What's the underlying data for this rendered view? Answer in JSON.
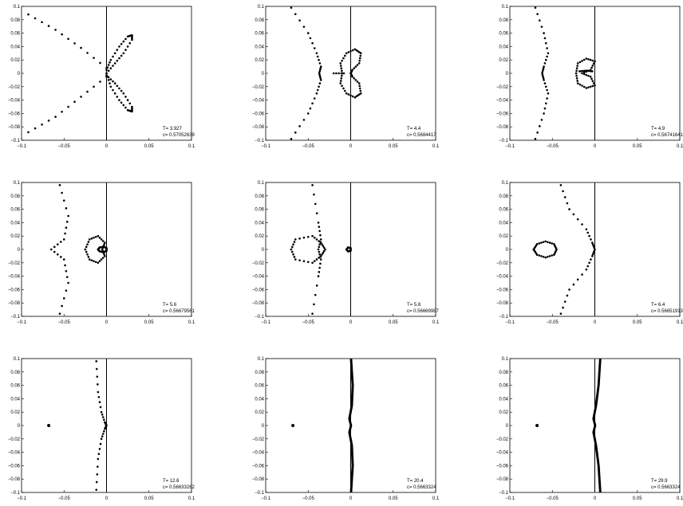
{
  "chart_data": [
    {
      "type": "scatter",
      "annotation": {
        "t": "T= 3.927",
        "c": "c= 0.57052639"
      },
      "xlim": [
        -0.1,
        0.1
      ],
      "ylim": [
        -0.1,
        0.1
      ],
      "xticks": [
        "−0.1",
        "−0.05",
        "0",
        "0.05",
        "0.1"
      ],
      "yticks": [
        "0.1",
        "0.08",
        "0.06",
        "0.04",
        "0.02",
        "0",
        "−0.02",
        "−0.04",
        "−0.06",
        "−0.08",
        "−0.1"
      ],
      "series": [
        {
          "kind": "line",
          "points": [
            [
              -0.092,
              0.088
            ],
            [
              -0.06,
              0.065
            ],
            [
              -0.03,
              0.038
            ],
            [
              0,
              0.008
            ]
          ]
        },
        {
          "kind": "line",
          "points": [
            [
              -0.092,
              -0.088
            ],
            [
              -0.06,
              -0.065
            ],
            [
              -0.03,
              -0.035
            ],
            [
              0,
              -0.005
            ]
          ]
        },
        {
          "kind": "line",
          "points": [
            [
              0,
              0.005
            ],
            [
              0.005,
              0.02
            ],
            [
              0.015,
              0.04
            ],
            [
              0.025,
              0.055
            ],
            [
              0.03,
              0.057
            ],
            [
              0.03,
              0.05
            ],
            [
              0.02,
              0.03
            ],
            [
              0.01,
              0.015
            ],
            [
              0,
              0
            ]
          ]
        },
        {
          "kind": "line",
          "points": [
            [
              0,
              0
            ],
            [
              0.005,
              -0.02
            ],
            [
              0.015,
              -0.04
            ],
            [
              0.025,
              -0.055
            ],
            [
              0.03,
              -0.057
            ],
            [
              0.03,
              -0.05
            ],
            [
              0.02,
              -0.03
            ],
            [
              0.01,
              -0.015
            ],
            [
              0,
              -0.003
            ]
          ]
        }
      ]
    },
    {
      "type": "scatter",
      "annotation": {
        "t": "T= 4.4",
        "c": "c= 0.5684417"
      },
      "xlim": [
        -0.1,
        0.1
      ],
      "ylim": [
        -0.1,
        0.1
      ],
      "xticks": [
        "−0.1",
        "−0.05",
        "0",
        "0.05",
        "0.1"
      ],
      "yticks": [
        "0.1",
        "0.08",
        "0.06",
        "0.04",
        "0.02",
        "0",
        "−0.02",
        "−0.04",
        "−0.06",
        "−0.08",
        "−0.1"
      ],
      "series": [
        {
          "kind": "line",
          "points": [
            [
              -0.07,
              0.098
            ],
            [
              -0.05,
              0.06
            ],
            [
              -0.04,
              0.03
            ],
            [
              -0.035,
              0.01
            ],
            [
              -0.037,
              0
            ],
            [
              -0.035,
              -0.01
            ],
            [
              -0.04,
              -0.03
            ],
            [
              -0.05,
              -0.06
            ],
            [
              -0.07,
              -0.098
            ]
          ]
        },
        {
          "kind": "line",
          "points": [
            [
              -0.01,
              0
            ],
            [
              -0.012,
              0.015
            ],
            [
              -0.005,
              0.03
            ],
            [
              0.005,
              0.036
            ],
            [
              0.012,
              0.03
            ],
            [
              0.01,
              0.015
            ],
            [
              0.002,
              0.005
            ],
            [
              0,
              0
            ],
            [
              0.002,
              -0.005
            ],
            [
              0.01,
              -0.015
            ],
            [
              0.012,
              -0.03
            ],
            [
              0.005,
              -0.036
            ],
            [
              -0.005,
              -0.03
            ],
            [
              -0.012,
              -0.015
            ],
            [
              -0.01,
              0
            ]
          ]
        },
        {
          "kind": "line",
          "points": [
            [
              -0.02,
              0
            ],
            [
              -0.008,
              0
            ]
          ]
        }
      ]
    },
    {
      "type": "scatter",
      "annotation": {
        "t": "T= 4.9",
        "c": "c= 0.56741641"
      },
      "xlim": [
        -0.1,
        0.1
      ],
      "ylim": [
        -0.1,
        0.1
      ],
      "xticks": [
        "−0.1",
        "−0.05",
        "0",
        "0.05",
        "0.1"
      ],
      "yticks": [
        "0.1",
        "0.08",
        "0.06",
        "0.04",
        "0.02",
        "0",
        "−0.02",
        "−0.04",
        "−0.06",
        "−0.08",
        "−0.1"
      ],
      "series": [
        {
          "kind": "line",
          "points": [
            [
              -0.07,
              0.098
            ],
            [
              -0.06,
              0.06
            ],
            [
              -0.055,
              0.03
            ],
            [
              -0.06,
              0.01
            ],
            [
              -0.062,
              0
            ],
            [
              -0.06,
              -0.01
            ],
            [
              -0.055,
              -0.03
            ],
            [
              -0.06,
              -0.06
            ],
            [
              -0.07,
              -0.098
            ]
          ]
        },
        {
          "kind": "line",
          "points": [
            [
              -0.022,
              0
            ],
            [
              -0.02,
              0.015
            ],
            [
              -0.01,
              0.022
            ],
            [
              0,
              0.018
            ],
            [
              -0.005,
              0.005
            ],
            [
              -0.015,
              0
            ],
            [
              -0.005,
              -0.005
            ],
            [
              0,
              -0.018
            ],
            [
              -0.01,
              -0.022
            ],
            [
              -0.02,
              -0.015
            ],
            [
              -0.022,
              0
            ]
          ]
        },
        {
          "kind": "line",
          "points": [
            [
              -0.018,
              0.003
            ],
            [
              -0.01,
              0.004
            ],
            [
              -0.003,
              0.003
            ]
          ]
        }
      ]
    },
    {
      "type": "scatter",
      "annotation": {
        "t": "T= 5.6",
        "c": "c= 0.56679561"
      },
      "xlim": [
        -0.1,
        0.1
      ],
      "ylim": [
        -0.1,
        0.1
      ],
      "xticks": [
        "−0.1",
        "−0.05",
        "0",
        "0.05",
        "0.1"
      ],
      "yticks": [
        "0.1",
        "0.08",
        "0.06",
        "0.04",
        "0.02",
        "0",
        "−0.02",
        "−0.04",
        "−0.06",
        "−0.08",
        "−0.1"
      ],
      "series": [
        {
          "kind": "line",
          "points": [
            [
              -0.055,
              0.096
            ],
            [
              -0.045,
              0.05
            ],
            [
              -0.05,
              0.015
            ],
            [
              -0.065,
              0
            ],
            [
              -0.05,
              -0.015
            ],
            [
              -0.045,
              -0.05
            ],
            [
              -0.055,
              -0.096
            ]
          ]
        },
        {
          "kind": "line",
          "points": [
            [
              -0.025,
              0
            ],
            [
              -0.02,
              0.015
            ],
            [
              -0.01,
              0.02
            ],
            [
              -0.002,
              0.01
            ],
            [
              -0.005,
              0
            ],
            [
              -0.002,
              -0.01
            ],
            [
              -0.01,
              -0.02
            ],
            [
              -0.02,
              -0.015
            ],
            [
              -0.025,
              0
            ]
          ]
        },
        {
          "kind": "line",
          "points": [
            [
              -0.01,
              0
            ],
            [
              -0.008,
              0.003
            ],
            [
              -0.003,
              0.004
            ],
            [
              0,
              0.002
            ],
            [
              0,
              -0.002
            ],
            [
              -0.003,
              -0.004
            ],
            [
              -0.008,
              -0.003
            ],
            [
              -0.01,
              0
            ]
          ]
        }
      ]
    },
    {
      "type": "scatter",
      "annotation": {
        "t": "T= 5.8",
        "c": "c= 0.56669987"
      },
      "xlim": [
        -0.1,
        0.1
      ],
      "ylim": [
        -0.1,
        0.1
      ],
      "xticks": [
        "−0.1",
        "−0.05",
        "0",
        "0.05",
        "0.1"
      ],
      "yticks": [
        "0.1",
        "0.08",
        "0.06",
        "0.04",
        "0.02",
        "0",
        "−0.02",
        "−0.04",
        "−0.06",
        "−0.08",
        "−0.1"
      ],
      "series": [
        {
          "kind": "line",
          "points": [
            [
              -0.045,
              0.096
            ],
            [
              -0.038,
              0.04
            ],
            [
              -0.035,
              0.015
            ],
            [
              -0.038,
              0
            ],
            [
              -0.035,
              -0.015
            ],
            [
              -0.038,
              -0.04
            ],
            [
              -0.045,
              -0.096
            ]
          ]
        },
        {
          "kind": "line",
          "points": [
            [
              -0.07,
              0
            ],
            [
              -0.065,
              0.015
            ],
            [
              -0.045,
              0.02
            ],
            [
              -0.035,
              0.01
            ],
            [
              -0.03,
              0
            ],
            [
              -0.035,
              -0.01
            ],
            [
              -0.045,
              -0.02
            ],
            [
              -0.065,
              -0.015
            ],
            [
              -0.07,
              0
            ]
          ]
        },
        {
          "kind": "line",
          "points": [
            [
              -0.005,
              0
            ],
            [
              -0.003,
              0.003
            ],
            [
              0,
              0.002
            ],
            [
              0,
              -0.002
            ],
            [
              -0.003,
              -0.003
            ],
            [
              -0.005,
              0
            ]
          ]
        }
      ]
    },
    {
      "type": "scatter",
      "annotation": {
        "t": "T= 6.4",
        "c": "c= 0.56651913"
      },
      "xlim": [
        -0.1,
        0.1
      ],
      "ylim": [
        -0.1,
        0.1
      ],
      "xticks": [
        "−0.1",
        "−0.05",
        "0",
        "0.05",
        "0.1"
      ],
      "yticks": [
        "0.1",
        "0.08",
        "0.06",
        "0.04",
        "0.02",
        "0",
        "−0.02",
        "−0.04",
        "−0.06",
        "−0.08",
        "−0.1"
      ],
      "series": [
        {
          "kind": "line",
          "points": [
            [
              -0.04,
              0.096
            ],
            [
              -0.03,
              0.06
            ],
            [
              -0.01,
              0.03
            ],
            [
              -0.003,
              0.01
            ],
            [
              0,
              0
            ],
            [
              -0.003,
              -0.01
            ],
            [
              -0.01,
              -0.03
            ],
            [
              -0.03,
              -0.06
            ],
            [
              -0.04,
              -0.096
            ]
          ]
        },
        {
          "kind": "line",
          "points": [
            [
              -0.072,
              0
            ],
            [
              -0.068,
              0.008
            ],
            [
              -0.058,
              0.012
            ],
            [
              -0.048,
              0.008
            ],
            [
              -0.045,
              0
            ],
            [
              -0.048,
              -0.008
            ],
            [
              -0.058,
              -0.012
            ],
            [
              -0.068,
              -0.008
            ],
            [
              -0.072,
              0
            ]
          ]
        }
      ]
    },
    {
      "type": "scatter",
      "annotation": {
        "t": "T= 12.6",
        "c": "c= 0.56633262"
      },
      "xlim": [
        -0.1,
        0.1
      ],
      "ylim": [
        -0.1,
        0.1
      ],
      "xticks": [
        "−0.1",
        "−0.05",
        "0",
        "0.05",
        "0.1"
      ],
      "yticks": [
        "0.1",
        "0.08",
        "0.06",
        "0.04",
        "0.02",
        "0",
        "−0.02",
        "−0.04",
        "−0.06",
        "−0.08",
        "−0.1"
      ],
      "series": [
        {
          "kind": "line",
          "points": [
            [
              -0.012,
              0.096
            ],
            [
              -0.01,
              0.05
            ],
            [
              -0.006,
              0.02
            ],
            [
              -0.002,
              0.005
            ],
            [
              0,
              0
            ],
            [
              -0.002,
              -0.005
            ],
            [
              -0.006,
              -0.02
            ],
            [
              -0.01,
              -0.05
            ],
            [
              -0.012,
              -0.096
            ]
          ]
        },
        {
          "kind": "dot",
          "points": [
            [
              -0.068,
              0
            ]
          ]
        }
      ]
    },
    {
      "type": "scatter",
      "annotation": {
        "t": "T= 20.4",
        "c": "c= 0.5663324"
      },
      "xlim": [
        -0.1,
        0.1
      ],
      "ylim": [
        -0.1,
        0.1
      ],
      "xticks": [
        "−0.1",
        "−0.05",
        "0",
        "0.05",
        "0.1"
      ],
      "yticks": [
        "0.1",
        "0.08",
        "0.06",
        "0.04",
        "0.02",
        "0",
        "−0.02",
        "−0.04",
        "−0.06",
        "−0.08",
        "−0.1"
      ],
      "series": [
        {
          "kind": "curve",
          "points": [
            [
              0,
              0.1
            ],
            [
              0.002,
              0.06
            ],
            [
              0.001,
              0.03
            ],
            [
              -0.002,
              0.01
            ],
            [
              0,
              0
            ],
            [
              -0.002,
              -0.01
            ],
            [
              0.001,
              -0.03
            ],
            [
              0.002,
              -0.06
            ],
            [
              0,
              -0.1
            ]
          ]
        },
        {
          "kind": "dot",
          "points": [
            [
              -0.068,
              0
            ]
          ]
        }
      ]
    },
    {
      "type": "scatter",
      "annotation": {
        "t": "T= 29.9",
        "c": "c= 0.5663324"
      },
      "xlim": [
        -0.1,
        0.1
      ],
      "ylim": [
        -0.1,
        0.1
      ],
      "xticks": [
        "−0.1",
        "−0.05",
        "0",
        "0.05",
        "0.1"
      ],
      "yticks": [
        "0.1",
        "0.08",
        "0.06",
        "0.04",
        "0.02",
        "0",
        "−0.02",
        "−0.04",
        "−0.06",
        "−0.08",
        "−0.1"
      ],
      "series": [
        {
          "kind": "curve",
          "points": [
            [
              0.006,
              0.1
            ],
            [
              0.004,
              0.06
            ],
            [
              0.001,
              0.03
            ],
            [
              -0.002,
              0.01
            ],
            [
              0,
              0
            ],
            [
              -0.002,
              -0.01
            ],
            [
              0.001,
              -0.03
            ],
            [
              0.004,
              -0.06
            ],
            [
              0.006,
              -0.1
            ]
          ]
        },
        {
          "kind": "dot",
          "points": [
            [
              -0.068,
              0
            ]
          ]
        }
      ]
    }
  ]
}
